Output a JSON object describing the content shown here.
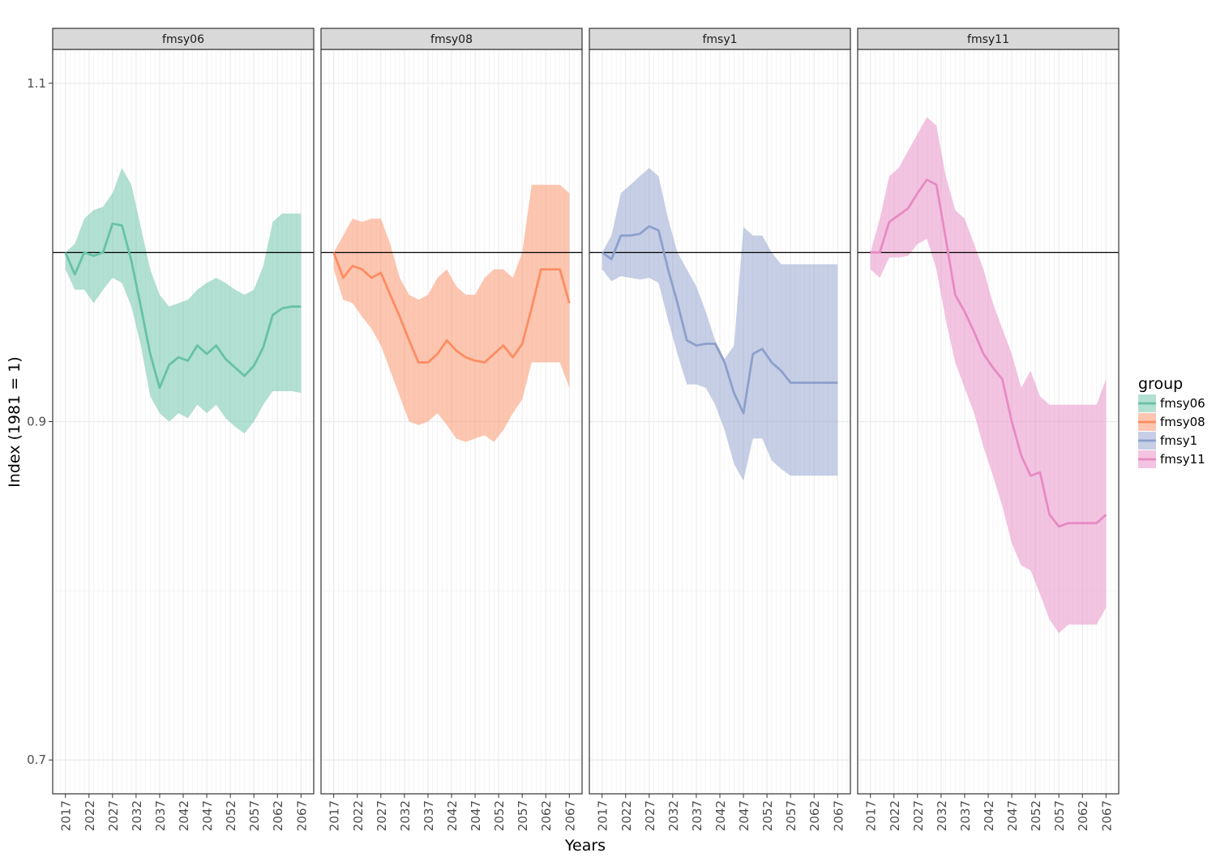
{
  "chart_data": {
    "type": "line",
    "xlabel": "Years",
    "ylabel": "Index (1981 = 1)",
    "ylim": [
      0.68,
      1.12
    ],
    "xlim": [
      2014.3,
      2069.7
    ],
    "y_ticks": [
      0.7,
      0.9,
      1.1
    ],
    "y_tick_labels": [
      "0.7",
      "0.9",
      "1.1"
    ],
    "x_ticks": [
      2017,
      2022,
      2027,
      2032,
      2037,
      2042,
      2047,
      2052,
      2057,
      2062,
      2067
    ],
    "x_tick_labels": [
      "2017",
      "2022",
      "2027",
      "2032",
      "2037",
      "2042",
      "2047",
      "2052",
      "2057",
      "2062",
      "2067"
    ],
    "reference_line": 1.0,
    "grid": true,
    "legend": {
      "title": "group",
      "position": "right",
      "entries": [
        "fmsy06",
        "fmsy08",
        "fmsy1",
        "fmsy11"
      ]
    },
    "x": [
      2017,
      2019,
      2021,
      2023,
      2025,
      2027,
      2029,
      2031,
      2033,
      2035,
      2037,
      2039,
      2041,
      2043,
      2045,
      2047,
      2049,
      2051,
      2053,
      2055,
      2057,
      2059,
      2061,
      2063,
      2065,
      2067
    ],
    "panels": [
      {
        "name": "fmsy06",
        "color": "#66c2a5",
        "median": [
          1.0,
          0.987,
          1.0,
          0.998,
          1.0,
          1.017,
          1.016,
          0.995,
          0.968,
          0.94,
          0.92,
          0.9335,
          0.938,
          0.936,
          0.945,
          0.94,
          0.945,
          0.937,
          0.932,
          0.927,
          0.933,
          0.944,
          0.963,
          0.967,
          0.968,
          0.968
        ],
        "lower": [
          0.99,
          0.978,
          0.978,
          0.97,
          0.978,
          0.985,
          0.982,
          0.968,
          0.945,
          0.915,
          0.905,
          0.9,
          0.905,
          0.902,
          0.91,
          0.905,
          0.91,
          0.902,
          0.897,
          0.893,
          0.9,
          0.91,
          0.918,
          0.918,
          0.918,
          0.917
        ],
        "upper": [
          1.0,
          1.005,
          1.02,
          1.025,
          1.027,
          1.035,
          1.05,
          1.04,
          1.015,
          0.99,
          0.975,
          0.968,
          0.97,
          0.972,
          0.978,
          0.982,
          0.985,
          0.982,
          0.978,
          0.975,
          0.978,
          0.992,
          1.018,
          1.023,
          1.023,
          1.023
        ]
      },
      {
        "name": "fmsy08",
        "color": "#fc8d62",
        "median": [
          1.0,
          0.985,
          0.992,
          0.99,
          0.985,
          0.988,
          0.975,
          0.962,
          0.948,
          0.935,
          0.935,
          0.94,
          0.948,
          0.942,
          0.938,
          0.936,
          0.935,
          0.94,
          0.945,
          0.938,
          0.946,
          0.967,
          0.99,
          0.99,
          0.99,
          0.97
        ],
        "lower": [
          0.99,
          0.972,
          0.97,
          0.962,
          0.955,
          0.945,
          0.93,
          0.915,
          0.9,
          0.898,
          0.9,
          0.905,
          0.898,
          0.89,
          0.888,
          0.89,
          0.892,
          0.888,
          0.895,
          0.905,
          0.913,
          0.935,
          0.935,
          0.935,
          0.935,
          0.92
        ],
        "upper": [
          1.0,
          1.01,
          1.02,
          1.018,
          1.02,
          1.02,
          1.005,
          0.985,
          0.975,
          0.972,
          0.975,
          0.985,
          0.99,
          0.98,
          0.975,
          0.975,
          0.985,
          0.99,
          0.99,
          0.985,
          1.0,
          1.04,
          1.04,
          1.04,
          1.04,
          1.035
        ]
      },
      {
        "name": "fmsy1",
        "color": "#8da0cb",
        "median": [
          1.0,
          0.996,
          1.01,
          1.01,
          1.011,
          1.0155,
          1.013,
          0.99,
          0.97,
          0.948,
          0.945,
          0.946,
          0.946,
          0.935,
          0.917,
          0.905,
          0.94,
          0.943,
          0.935,
          0.93,
          0.923,
          0.923,
          0.923,
          0.923,
          0.923,
          0.923
        ],
        "lower": [
          0.99,
          0.983,
          0.986,
          0.985,
          0.984,
          0.985,
          0.982,
          0.96,
          0.94,
          0.922,
          0.922,
          0.92,
          0.91,
          0.895,
          0.875,
          0.865,
          0.89,
          0.89,
          0.877,
          0.872,
          0.868,
          0.868,
          0.868,
          0.868,
          0.868,
          0.868
        ],
        "upper": [
          1.0,
          1.01,
          1.035,
          1.04,
          1.045,
          1.05,
          1.045,
          1.02,
          1.0,
          0.99,
          0.98,
          0.965,
          0.948,
          0.937,
          0.945,
          1.015,
          1.01,
          1.01,
          1.0,
          0.993,
          0.993,
          0.993,
          0.993,
          0.993,
          0.993,
          0.993
        ]
      },
      {
        "name": "fmsy11",
        "color": "#e78ac3",
        "median": [
          1.0,
          1.0,
          1.018,
          1.022,
          1.026,
          1.035,
          1.043,
          1.04,
          1.008,
          0.975,
          0.965,
          0.953,
          0.94,
          0.932,
          0.925,
          0.9,
          0.88,
          0.868,
          0.87,
          0.845,
          0.838,
          0.84,
          0.84,
          0.84,
          0.84,
          0.845
        ],
        "lower": [
          0.99,
          0.985,
          0.997,
          0.997,
          0.998,
          1.005,
          1.008,
          0.99,
          0.96,
          0.935,
          0.92,
          0.905,
          0.885,
          0.868,
          0.85,
          0.828,
          0.815,
          0.812,
          0.798,
          0.783,
          0.775,
          0.78,
          0.78,
          0.78,
          0.78,
          0.79
        ],
        "upper": [
          1.0,
          1.02,
          1.045,
          1.05,
          1.06,
          1.07,
          1.08,
          1.075,
          1.045,
          1.025,
          1.02,
          1.005,
          0.99,
          0.97,
          0.955,
          0.94,
          0.92,
          0.93,
          0.915,
          0.91,
          0.91,
          0.91,
          0.91,
          0.91,
          0.91,
          0.925
        ]
      }
    ]
  }
}
